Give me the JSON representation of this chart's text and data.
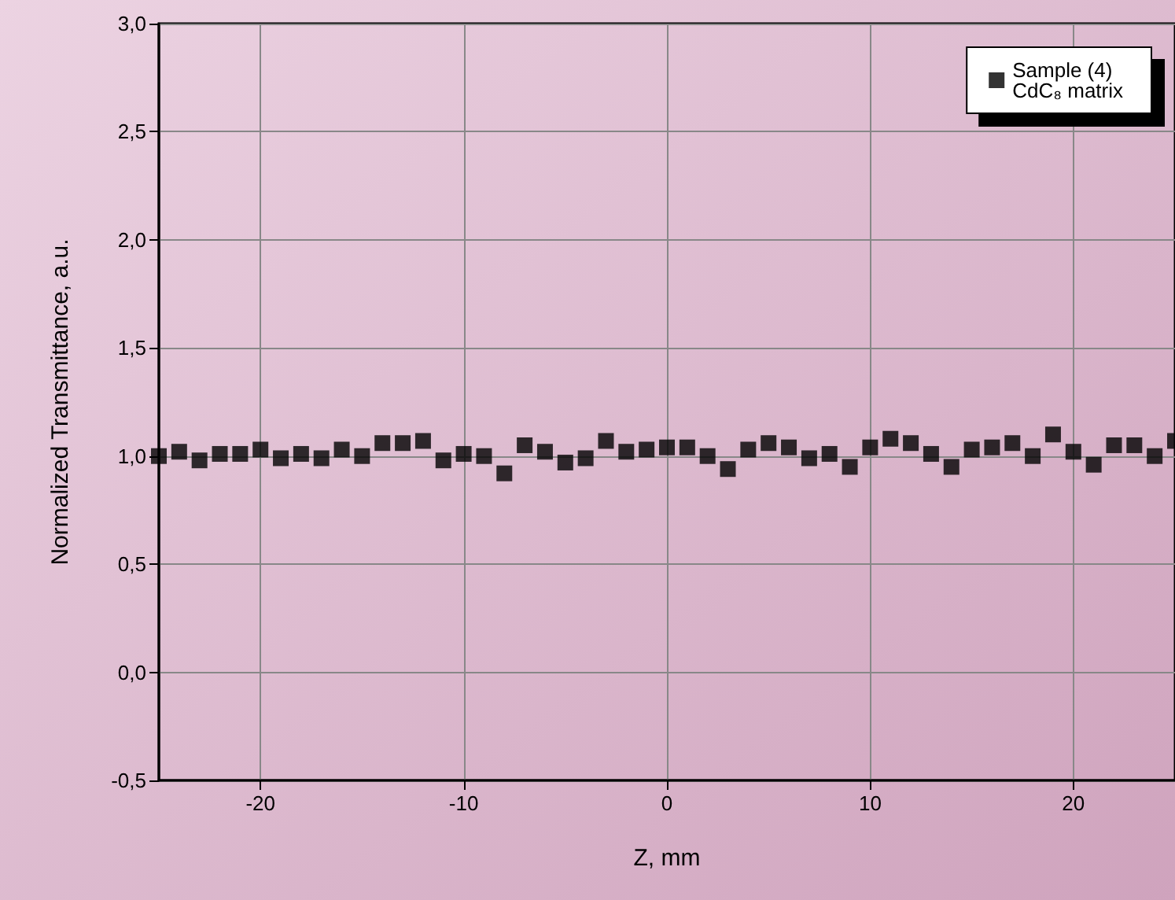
{
  "chart_data": {
    "type": "scatter",
    "xlabel": "Z, mm",
    "ylabel": "Normalized Transmittance, a.u.",
    "x": [
      -25,
      -24,
      -23,
      -22,
      -21,
      -20,
      -19,
      -18,
      -17,
      -16,
      -15,
      -14,
      -13,
      -12,
      -11,
      -10,
      -9,
      -8,
      -7,
      -6,
      -5,
      -4,
      -3,
      -2,
      -1,
      0,
      1,
      2,
      3,
      4,
      5,
      6,
      7,
      8,
      9,
      10,
      11,
      12,
      13,
      14,
      15,
      16,
      17,
      18,
      19,
      20,
      21,
      22,
      23,
      24,
      25
    ],
    "series": [
      {
        "name": "Sample (4)\nCdC₈ matrix",
        "color": "#000000",
        "values": [
          1.0,
          1.02,
          0.98,
          1.01,
          1.01,
          1.03,
          0.99,
          1.01,
          0.99,
          1.03,
          1.0,
          1.06,
          1.06,
          1.07,
          0.98,
          1.01,
          1.0,
          0.92,
          1.05,
          1.02,
          0.97,
          0.99,
          1.07,
          1.02,
          1.03,
          1.04,
          1.04,
          1.0,
          0.94,
          1.03,
          1.06,
          1.04,
          0.99,
          1.01,
          0.95,
          1.04,
          1.08,
          1.06,
          1.01,
          0.95,
          1.03,
          1.04,
          1.06,
          1.0,
          1.1,
          1.02,
          0.96,
          1.05,
          1.05,
          1.0,
          1.07
        ]
      }
    ],
    "xlim": [
      -25,
      25
    ],
    "xticks": [
      -20,
      -10,
      0,
      10,
      20
    ],
    "ylim": [
      -0.5,
      3.0
    ],
    "yticks": [
      {
        "value": -0.5,
        "label": "-0,5"
      },
      {
        "value": 0,
        "label": "0,0"
      },
      {
        "value": 0.5,
        "label": "0,5"
      },
      {
        "value": 1.0,
        "label": "1,0"
      },
      {
        "value": 1.5,
        "label": "1,5"
      },
      {
        "value": 2.0,
        "label": "2,0"
      },
      {
        "value": 2.5,
        "label": "2,5"
      },
      {
        "value": 3.0,
        "label": "3,0"
      }
    ],
    "grid": true,
    "legend": "top right",
    "marker": "square"
  }
}
